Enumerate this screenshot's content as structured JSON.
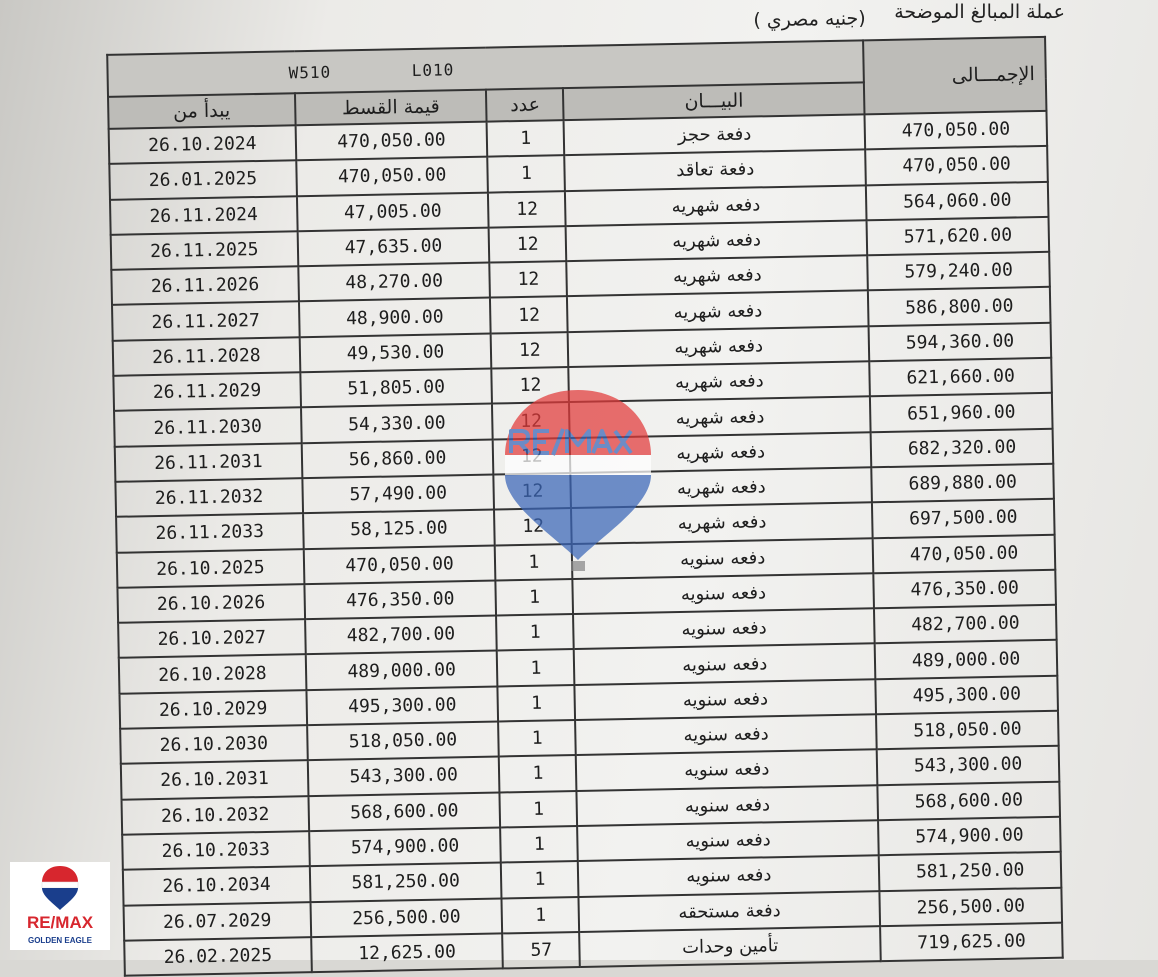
{
  "caption": {
    "line1": "عملة المبالغ الموضحة",
    "line2": "(جنيه مصري )"
  },
  "unit_codes": {
    "w": "W510",
    "l": "L010"
  },
  "headers": {
    "start_date": "يبدأ من",
    "installment_value": "قيمة القسط",
    "count": "عدد",
    "description": "البيـــان",
    "total": "الإجمـــالى"
  },
  "rows": [
    {
      "date": "26.10.2024",
      "amount": "470,050.00",
      "count": "1",
      "desc": "دفعة حجز",
      "total": "470,050.00"
    },
    {
      "date": "26.01.2025",
      "amount": "470,050.00",
      "count": "1",
      "desc": "دفعة تعاقد",
      "total": "470,050.00"
    },
    {
      "date": "26.11.2024",
      "amount": "47,005.00",
      "count": "12",
      "desc": "دفعه شهريه",
      "total": "564,060.00"
    },
    {
      "date": "26.11.2025",
      "amount": "47,635.00",
      "count": "12",
      "desc": "دفعه شهريه",
      "total": "571,620.00"
    },
    {
      "date": "26.11.2026",
      "amount": "48,270.00",
      "count": "12",
      "desc": "دفعه شهريه",
      "total": "579,240.00"
    },
    {
      "date": "26.11.2027",
      "amount": "48,900.00",
      "count": "12",
      "desc": "دفعه شهريه",
      "total": "586,800.00"
    },
    {
      "date": "26.11.2028",
      "amount": "49,530.00",
      "count": "12",
      "desc": "دفعه شهريه",
      "total": "594,360.00"
    },
    {
      "date": "26.11.2029",
      "amount": "51,805.00",
      "count": "12",
      "desc": "دفعه شهريه",
      "total": "621,660.00"
    },
    {
      "date": "26.11.2030",
      "amount": "54,330.00",
      "count": "12",
      "desc": "دفعه شهريه",
      "total": "651,960.00"
    },
    {
      "date": "26.11.2031",
      "amount": "56,860.00",
      "count": "12",
      "desc": "دفعه شهريه",
      "total": "682,320.00"
    },
    {
      "date": "26.11.2032",
      "amount": "57,490.00",
      "count": "12",
      "desc": "دفعه شهريه",
      "total": "689,880.00"
    },
    {
      "date": "26.11.2033",
      "amount": "58,125.00",
      "count": "12",
      "desc": "دفعه شهريه",
      "total": "697,500.00"
    },
    {
      "date": "26.10.2025",
      "amount": "470,050.00",
      "count": "1",
      "desc": "دفعه سنويه",
      "total": "470,050.00"
    },
    {
      "date": "26.10.2026",
      "amount": "476,350.00",
      "count": "1",
      "desc": "دفعه سنويه",
      "total": "476,350.00"
    },
    {
      "date": "26.10.2027",
      "amount": "482,700.00",
      "count": "1",
      "desc": "دفعه سنويه",
      "total": "482,700.00"
    },
    {
      "date": "26.10.2028",
      "amount": "489,000.00",
      "count": "1",
      "desc": "دفعه سنويه",
      "total": "489,000.00"
    },
    {
      "date": "26.10.2029",
      "amount": "495,300.00",
      "count": "1",
      "desc": "دفعه سنويه",
      "total": "495,300.00"
    },
    {
      "date": "26.10.2030",
      "amount": "518,050.00",
      "count": "1",
      "desc": "دفعه سنويه",
      "total": "518,050.00"
    },
    {
      "date": "26.10.2031",
      "amount": "543,300.00",
      "count": "1",
      "desc": "دفعه سنويه",
      "total": "543,300.00"
    },
    {
      "date": "26.10.2032",
      "amount": "568,600.00",
      "count": "1",
      "desc": "دفعه سنويه",
      "total": "568,600.00"
    },
    {
      "date": "26.10.2033",
      "amount": "574,900.00",
      "count": "1",
      "desc": "دفعه سنويه",
      "total": "574,900.00"
    },
    {
      "date": "26.10.2034",
      "amount": "581,250.00",
      "count": "1",
      "desc": "دفعه سنويه",
      "total": "581,250.00"
    },
    {
      "date": "26.07.2029",
      "amount": "256,500.00",
      "count": "1",
      "desc": "دفعة مستحقه",
      "total": "256,500.00"
    },
    {
      "date": "26.02.2025",
      "amount": "12,625.00",
      "count": "57",
      "desc": "تأمين وحدات",
      "total": "719,625.00"
    }
  ],
  "watermark": {
    "text": "RE/MAX"
  },
  "logo": {
    "brand": "RE/MAX",
    "sub": "GOLDEN EAGLE",
    "colors": {
      "red": "#d7262e",
      "blue": "#1a3e8c"
    }
  }
}
